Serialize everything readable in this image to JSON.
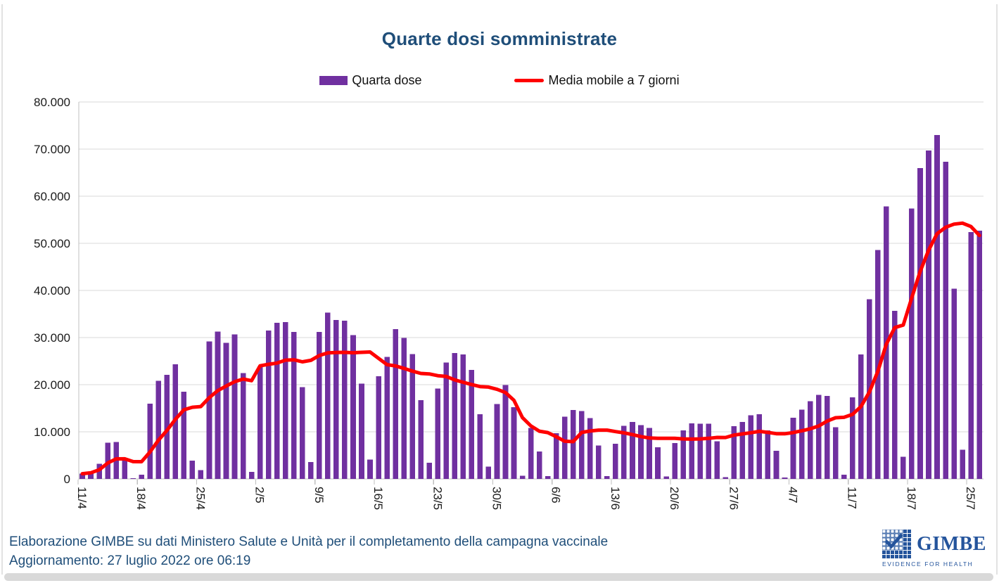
{
  "title": "Quarte dosi somministrate",
  "legend": {
    "bar_label": "Quarta dose",
    "line_label": "Media mobile a 7 giorni"
  },
  "footer": {
    "source_line": "Elaborazione GIMBE su dati Ministero Salute e Unità per il completamento della campagna vaccinale",
    "update_line": "Aggiornamento: 27 luglio 2022 ore 06:19"
  },
  "logo": {
    "name": "GIMBE",
    "tagline": "EVIDENCE FOR HEALTH"
  },
  "colors": {
    "bar": "#7030A0",
    "line": "#FF0000",
    "title_text": "#1F4E79",
    "grid": "#D9D9D9",
    "axis": "#BFBFBF"
  },
  "chart_data": {
    "type": "bar",
    "title": "Quarte dosi somministrate",
    "xlabel": "",
    "ylabel": "",
    "ylim": [
      0,
      80000
    ],
    "grid": true,
    "legend_position": "top",
    "x_tick_every": 7,
    "x_ticks": [
      "11/4",
      "18/4",
      "25/4",
      "2/5",
      "9/5",
      "16/5",
      "23/5",
      "30/5",
      "6/6",
      "13/6",
      "20/6",
      "27/6",
      "4/7",
      "11/7",
      "18/7",
      "25/7"
    ],
    "y_ticks": [
      "0",
      "10.000",
      "20.000",
      "30.000",
      "40.000",
      "50.000",
      "60.000",
      "70.000",
      "80.000"
    ],
    "series": [
      {
        "name": "Quarta dose",
        "type": "bar",
        "color": "#7030A0",
        "values": [
          1100,
          1500,
          3200,
          7700,
          7800,
          4300,
          150,
          900,
          16000,
          20800,
          22100,
          24300,
          18500,
          3900,
          1900,
          29200,
          31300,
          28900,
          30700,
          22500,
          1500,
          23900,
          31500,
          33100,
          33300,
          31200,
          19500,
          3600,
          31200,
          35300,
          33700,
          33600,
          30500,
          20200,
          4100,
          21800,
          25900,
          31800,
          29900,
          26500,
          16700,
          3400,
          19200,
          24700,
          26700,
          26400,
          23100,
          13700,
          2600,
          15900,
          19900,
          15200,
          700,
          10800,
          5800,
          600,
          9700,
          13200,
          14600,
          14400,
          12900,
          7100,
          600,
          7500,
          11300,
          12100,
          11400,
          10800,
          6700,
          500,
          7600,
          10300,
          11800,
          11700,
          11700,
          8000,
          400,
          11200,
          12100,
          13500,
          13700,
          10300,
          6000,
          300,
          13000,
          14700,
          16500,
          17800,
          17600,
          11000,
          900,
          17300,
          26400,
          38100,
          48600,
          57800,
          35700,
          4700,
          57400,
          66000,
          69700,
          73000,
          67300,
          40400,
          6200,
          52400,
          52700
        ]
      },
      {
        "name": "Media mobile a 7 giorni",
        "type": "line",
        "color": "#FF0000",
        "derived": "trailing 7-day moving average of 'Quarta dose' values"
      }
    ]
  }
}
